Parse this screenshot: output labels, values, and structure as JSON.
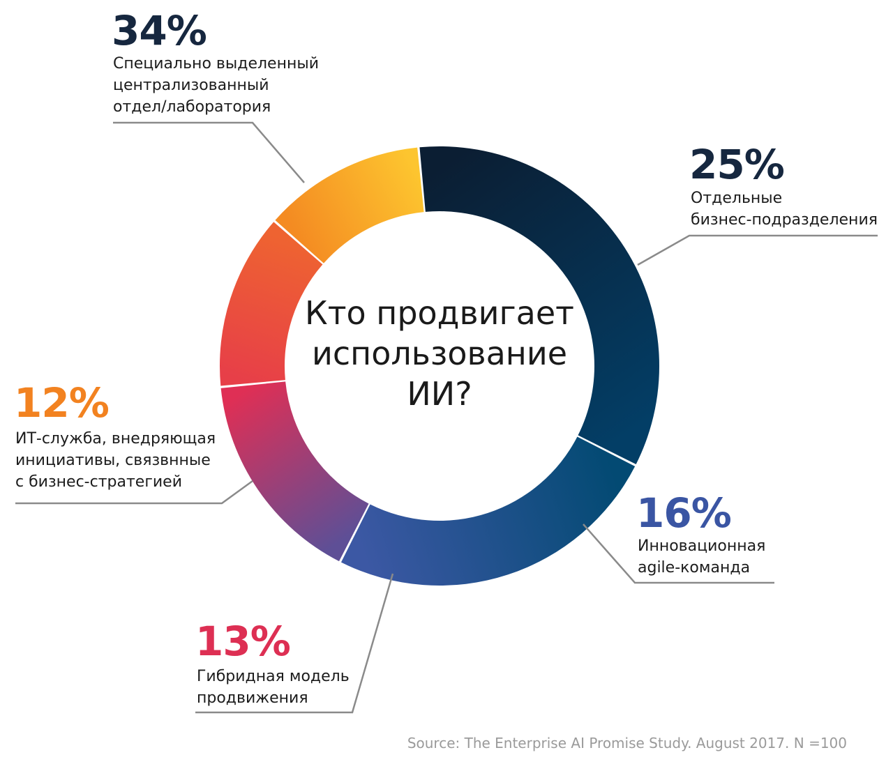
{
  "chart_data": {
    "type": "pie",
    "title": "Кто продвигает использование ИИ?",
    "title_lines": [
      "Кто продвигает",
      "использование",
      "ИИ?"
    ],
    "source": "Source: The Enterprise AI Promise Study. August 2017. N =100",
    "legend": "none",
    "slices": [
      {
        "value": 34,
        "label": "34%",
        "desc": [
          "Специально выделенный",
          "централизованный",
          "отдел/лаборатория"
        ],
        "colors": [
          "#0b1e33",
          "#033e66"
        ],
        "label_color": "#16273f"
      },
      {
        "value": 25,
        "label": "25%",
        "desc": [
          "Отдельные",
          "бизнес-подразделения"
        ],
        "colors": [
          "#034a73",
          "#3c58a4"
        ],
        "label_color": "#16273f"
      },
      {
        "value": 16,
        "label": "16%",
        "desc": [
          "Инновационная",
          "agile-команда"
        ],
        "colors": [
          "#5e4f96",
          "#df2f55"
        ],
        "label_color": "#3a55a3"
      },
      {
        "value": 13,
        "label": "13%",
        "desc": [
          "Гибридная модель",
          "продвижения"
        ],
        "colors": [
          "#e73f48",
          "#ee6331"
        ],
        "label_color": "#dd2f53"
      },
      {
        "value": 12,
        "label": "12%",
        "desc": [
          "ИТ-служба, внедряющая",
          "инициативы, связвнные",
          "с бизнес-стратегией"
        ],
        "colors": [
          "#f48b22",
          "#fdc52f"
        ],
        "label_color": "#f28220"
      }
    ]
  }
}
